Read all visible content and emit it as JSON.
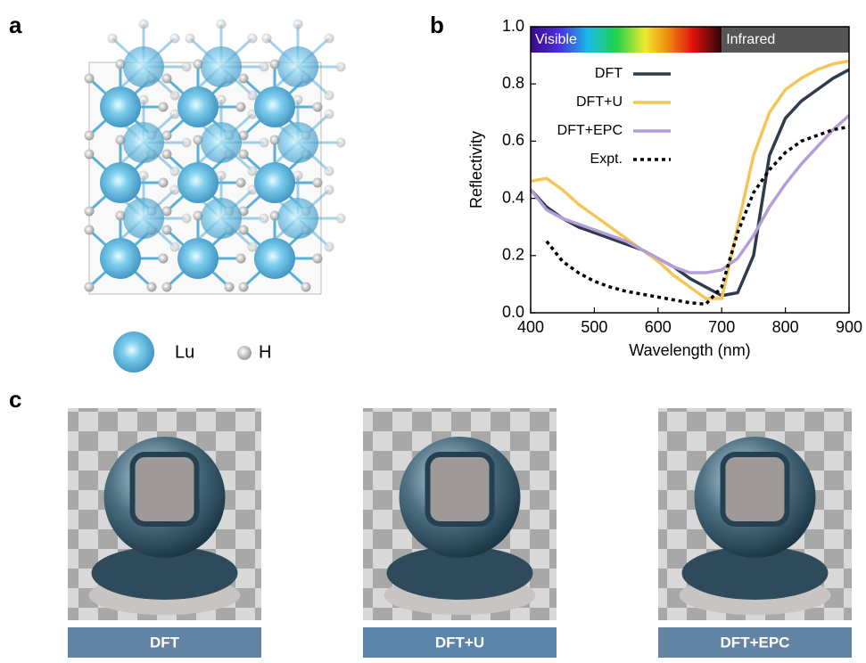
{
  "panel_labels": [
    "a",
    "b",
    "c"
  ],
  "structure": {
    "legend": [
      "Lu",
      "H"
    ]
  },
  "chart_data": {
    "type": "line",
    "xlabel": "Wavelength (nm)",
    "ylabel": "Reflectivity",
    "x": [
      400,
      425,
      450,
      475,
      500,
      525,
      550,
      575,
      600,
      625,
      650,
      675,
      700,
      725,
      750,
      775,
      800,
      825,
      850,
      875,
      900
    ],
    "series": [
      {
        "name": "DFT",
        "color": "#2e3b4c",
        "values": [
          0.43,
          0.37,
          0.33,
          0.3,
          0.28,
          0.26,
          0.24,
          0.22,
          0.19,
          0.16,
          0.12,
          0.09,
          0.06,
          0.07,
          0.2,
          0.55,
          0.68,
          0.74,
          0.78,
          0.82,
          0.85
        ]
      },
      {
        "name": "DFT+U",
        "color": "#f5c55a",
        "values": [
          0.46,
          0.47,
          0.43,
          0.38,
          0.34,
          0.3,
          0.26,
          0.22,
          0.18,
          0.13,
          0.09,
          0.05,
          0.05,
          0.3,
          0.55,
          0.7,
          0.78,
          0.82,
          0.85,
          0.87,
          0.88
        ]
      },
      {
        "name": "DFT+EPC",
        "color": "#b39ed9",
        "values": [
          0.43,
          0.36,
          0.33,
          0.31,
          0.29,
          0.27,
          0.25,
          0.22,
          0.19,
          0.16,
          0.14,
          0.14,
          0.15,
          0.19,
          0.27,
          0.37,
          0.45,
          0.52,
          0.58,
          0.64,
          0.69
        ]
      },
      {
        "name": "Expt.",
        "color": "#000000",
        "dashed": true,
        "values": [
          null,
          0.25,
          0.18,
          0.14,
          0.11,
          0.09,
          0.075,
          0.065,
          0.055,
          0.045,
          0.035,
          0.03,
          0.09,
          0.28,
          0.42,
          0.5,
          0.56,
          0.6,
          0.62,
          0.64,
          0.65
        ]
      }
    ],
    "xlim": [
      400,
      900
    ],
    "xticks": [
      400,
      500,
      600,
      700,
      800,
      900
    ],
    "ylim": [
      0,
      1
    ],
    "yticks": [
      {
        "value": 0,
        "label": "0.0"
      },
      0.2,
      0.4,
      0.6,
      0.8,
      {
        "value": 1,
        "label": "1.0"
      }
    ],
    "bands": [
      {
        "label": "Visible",
        "from": 400,
        "to": 700
      },
      {
        "label": "Infrared",
        "from": 700,
        "to": 900
      }
    ],
    "legend": "upper center"
  },
  "renderings": {
    "captions": [
      "DFT",
      "DFT+U",
      "DFT+EPC"
    ]
  }
}
